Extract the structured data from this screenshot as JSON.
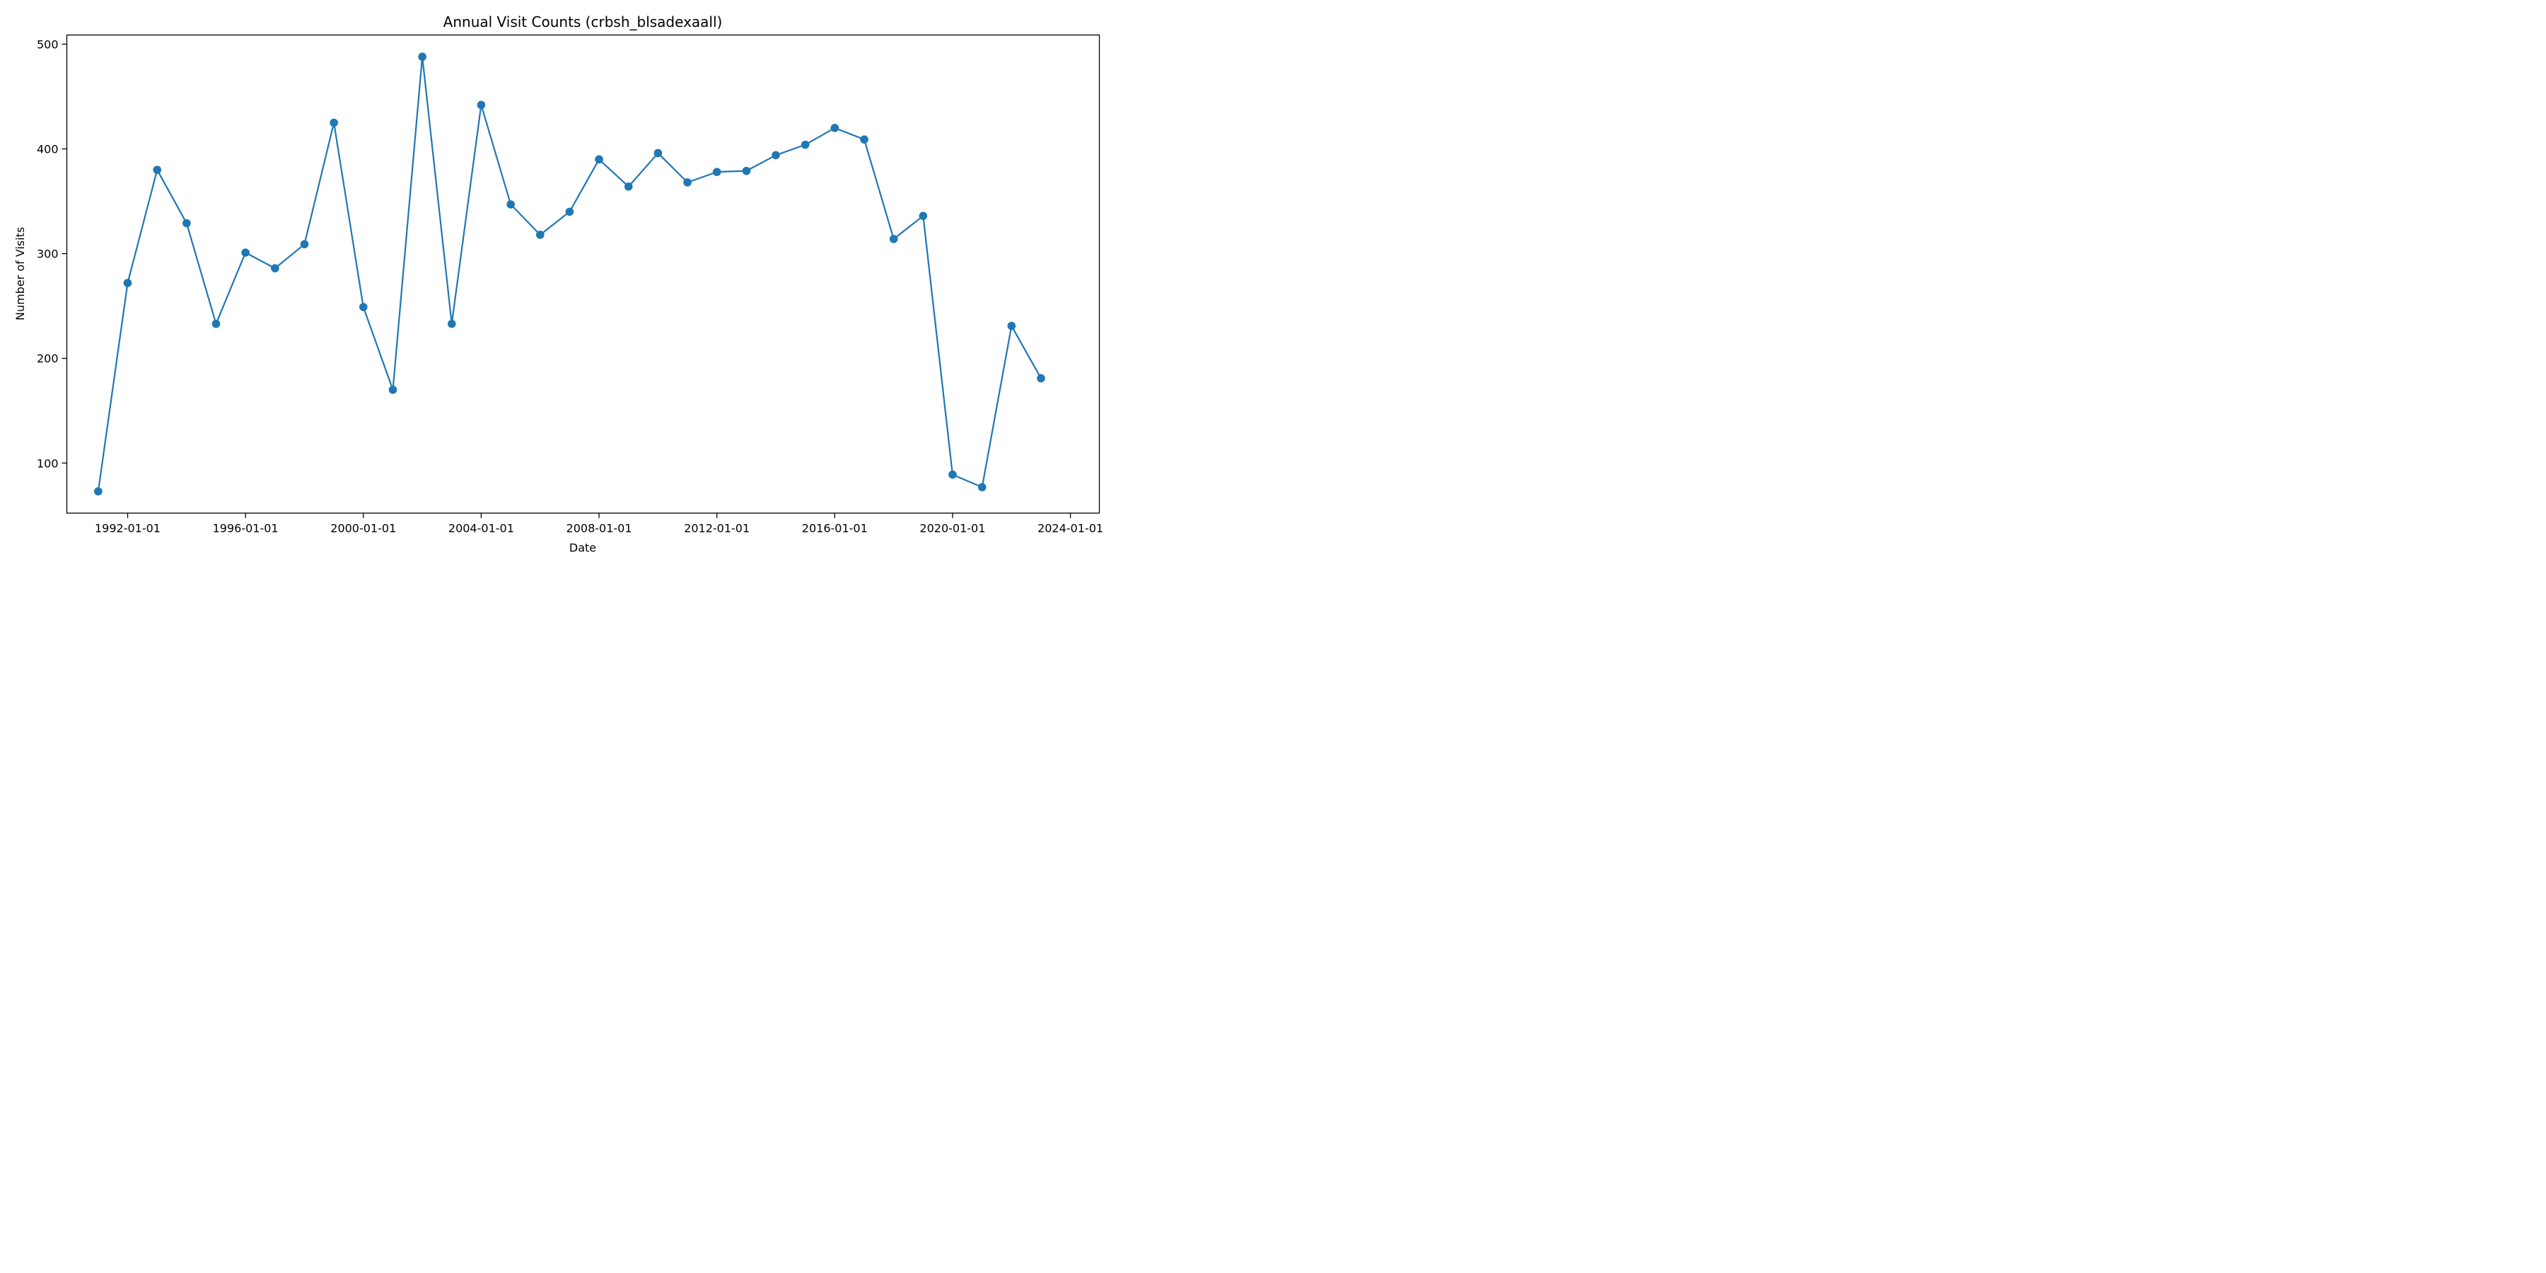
{
  "chart_data": {
    "type": "line",
    "title": "Annual Visit Counts (crbsh_blsadexaall)",
    "xlabel": "Date",
    "ylabel": "Number of Visits",
    "x_tick_labels": [
      "1992-01-01",
      "1996-01-01",
      "2000-01-01",
      "2004-01-01",
      "2008-01-01",
      "2012-01-01",
      "2016-01-01",
      "2020-01-01",
      "2024-01-01"
    ],
    "y_ticks": [
      100,
      200,
      300,
      400,
      500
    ],
    "xlim": [
      "1989-12-08",
      "2024-12-25"
    ],
    "ylim": [
      52.25,
      508.75
    ],
    "grid": false,
    "series_color": "#1f77b4",
    "series": [
      {
        "x": [
          "1991-01-01",
          "1992-01-01",
          "1993-01-01",
          "1994-01-01",
          "1995-01-01",
          "1996-01-01",
          "1997-01-01",
          "1998-01-01",
          "1999-01-01",
          "2000-01-01",
          "2001-01-01",
          "2002-01-01",
          "2003-01-01",
          "2004-01-01",
          "2005-01-01",
          "2006-01-01",
          "2007-01-01",
          "2008-01-01",
          "2009-01-01",
          "2010-01-01",
          "2011-01-01",
          "2012-01-01",
          "2013-01-01",
          "2014-01-01",
          "2015-01-01",
          "2016-01-01",
          "2017-01-01",
          "2018-01-01",
          "2019-01-01",
          "2020-01-01",
          "2021-01-01",
          "2022-01-01",
          "2023-01-01"
        ],
        "values": [
          73,
          272,
          380,
          329,
          233,
          301,
          286,
          309,
          425,
          249,
          170,
          488,
          233,
          442,
          347,
          318,
          340,
          390,
          364,
          396,
          368,
          378,
          379,
          394,
          404,
          420,
          409,
          314,
          336,
          89,
          77,
          231,
          181
        ]
      }
    ]
  }
}
